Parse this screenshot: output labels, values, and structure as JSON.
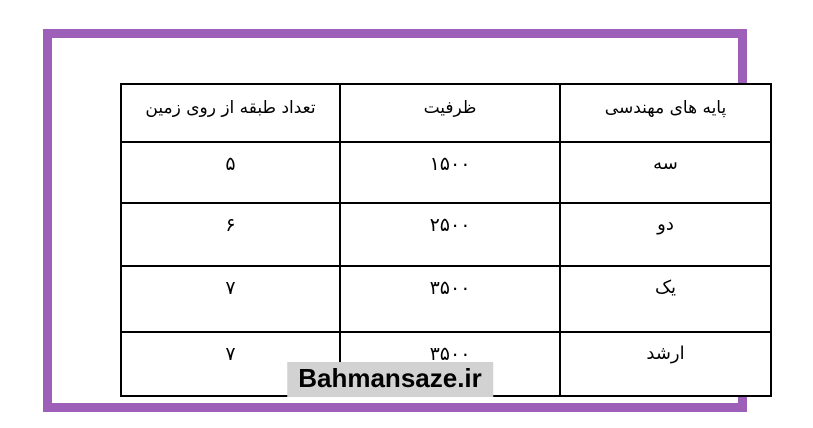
{
  "page": {
    "background_color": "#ffffff",
    "frame_color": "#9d5fb8"
  },
  "table": {
    "direction": "rtl",
    "columns": [
      {
        "key": "grade",
        "label": "پایه های مهندسی"
      },
      {
        "key": "capacity",
        "label": "ظرفیت"
      },
      {
        "key": "floors",
        "label": "تعداد طبقه از روی زمین"
      }
    ],
    "rows": [
      {
        "grade": "سه",
        "capacity": "۱۵۰۰",
        "floors": "۵"
      },
      {
        "grade": "دو",
        "capacity": "۲۵۰۰",
        "floors": "۶"
      },
      {
        "grade": "یک",
        "capacity": "۳۵۰۰",
        "floors": "۷"
      },
      {
        "grade": "ارشد",
        "capacity": "۳۵۰۰",
        "floors": "۷"
      }
    ]
  },
  "footer": {
    "watermark": "Bahmansaze.ir",
    "highlight_color": "#d2d2d2"
  }
}
